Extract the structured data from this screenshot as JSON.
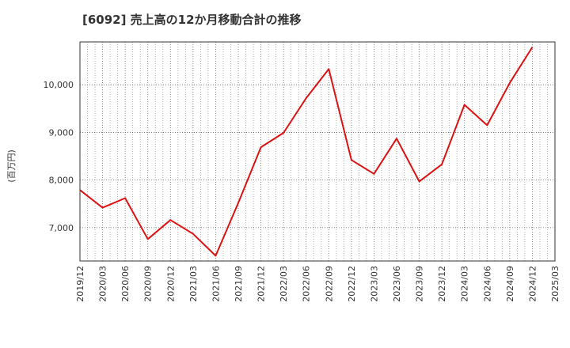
{
  "chart_data": {
    "type": "line",
    "title": "[6092]  売上高の12か月移動合計の推移",
    "ylabel": "(百万円)",
    "xlabel": "",
    "ylim": [
      6300,
      10900
    ],
    "yticks": [
      7000,
      8000,
      9000,
      10000
    ],
    "ytick_labels": [
      "7,000",
      "8,000",
      "9,000",
      "10,000"
    ],
    "x_tick_labels": [
      "2019/12",
      "2020/03",
      "2020/06",
      "2020/09",
      "2020/12",
      "2021/03",
      "2021/06",
      "2021/09",
      "2021/12",
      "2022/03",
      "2022/06",
      "2022/09",
      "2022/12",
      "2023/03",
      "2023/06",
      "2023/09",
      "2023/12",
      "2024/03",
      "2024/06",
      "2024/09",
      "2024/12",
      "2025/03"
    ],
    "series": [
      {
        "name": "売上高の12か月移動合計",
        "color": "#dd1111",
        "x": [
          "2019/12",
          "2020/03",
          "2020/06",
          "2020/09",
          "2020/12",
          "2021/03",
          "2021/06",
          "2021/09",
          "2021/12",
          "2022/03",
          "2022/06",
          "2022/09",
          "2022/12",
          "2023/03",
          "2023/06",
          "2023/09",
          "2023/12",
          "2024/03",
          "2024/06",
          "2024/09",
          "2024/12"
        ],
        "values": [
          7790,
          7420,
          7620,
          6760,
          7160,
          6870,
          6410,
          7520,
          8690,
          8990,
          9720,
          10330,
          8420,
          8130,
          8870,
          7970,
          8330,
          9580,
          9150,
          10040,
          10790
        ]
      }
    ],
    "grid": true
  }
}
